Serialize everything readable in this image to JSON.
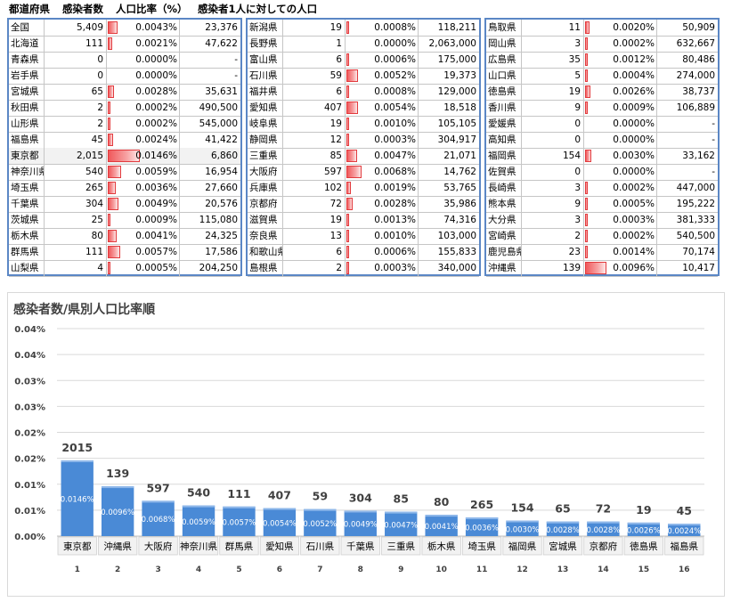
{
  "header": {
    "col1": "都道府県",
    "col2": "感染者数",
    "col3": "人口比率（%）",
    "col4": "感染者1人に対しての人口"
  },
  "columns": [
    [
      {
        "name": "全国",
        "cases": "5,409",
        "ratio": "0.0043%",
        "pct": 0.0043,
        "per": "23,376"
      },
      {
        "name": "北海道",
        "cases": "111",
        "ratio": "0.0021%",
        "pct": 0.0021,
        "per": "47,622"
      },
      {
        "name": "青森県",
        "cases": "0",
        "ratio": "0.0000%",
        "pct": 0,
        "per": "-"
      },
      {
        "name": "岩手県",
        "cases": "0",
        "ratio": "0.0000%",
        "pct": 0,
        "per": "-"
      },
      {
        "name": "宮城県",
        "cases": "65",
        "ratio": "0.0028%",
        "pct": 0.0028,
        "per": "35,631"
      },
      {
        "name": "秋田県",
        "cases": "2",
        "ratio": "0.0002%",
        "pct": 0.0002,
        "per": "490,500"
      },
      {
        "name": "山形県",
        "cases": "2",
        "ratio": "0.0002%",
        "pct": 0.0002,
        "per": "545,000"
      },
      {
        "name": "福島県",
        "cases": "45",
        "ratio": "0.0024%",
        "pct": 0.0024,
        "per": "41,422"
      },
      {
        "name": "東京都",
        "cases": "2,015",
        "ratio": "0.0146%",
        "pct": 0.0146,
        "per": "6,860",
        "hl": true
      },
      {
        "name": "神奈川県",
        "cases": "540",
        "ratio": "0.0059%",
        "pct": 0.0059,
        "per": "16,954"
      },
      {
        "name": "埼玉県",
        "cases": "265",
        "ratio": "0.0036%",
        "pct": 0.0036,
        "per": "27,660"
      },
      {
        "name": "千葉県",
        "cases": "304",
        "ratio": "0.0049%",
        "pct": 0.0049,
        "per": "20,576"
      },
      {
        "name": "茨城県",
        "cases": "25",
        "ratio": "0.0009%",
        "pct": 0.0009,
        "per": "115,080"
      },
      {
        "name": "栃木県",
        "cases": "80",
        "ratio": "0.0041%",
        "pct": 0.0041,
        "per": "24,325"
      },
      {
        "name": "群馬県",
        "cases": "111",
        "ratio": "0.0057%",
        "pct": 0.0057,
        "per": "17,586"
      },
      {
        "name": "山梨県",
        "cases": "4",
        "ratio": "0.0005%",
        "pct": 0.0005,
        "per": "204,250"
      }
    ],
    [
      {
        "name": "新潟県",
        "cases": "19",
        "ratio": "0.0008%",
        "pct": 0.0008,
        "per": "118,211"
      },
      {
        "name": "長野県",
        "cases": "1",
        "ratio": "0.0000%",
        "pct": 0,
        "per": "2,063,000"
      },
      {
        "name": "富山県",
        "cases": "6",
        "ratio": "0.0006%",
        "pct": 0.0006,
        "per": "175,000"
      },
      {
        "name": "石川県",
        "cases": "59",
        "ratio": "0.0052%",
        "pct": 0.0052,
        "per": "19,373"
      },
      {
        "name": "福井県",
        "cases": "6",
        "ratio": "0.0008%",
        "pct": 0.0008,
        "per": "129,000"
      },
      {
        "name": "愛知県",
        "cases": "407",
        "ratio": "0.0054%",
        "pct": 0.0054,
        "per": "18,518"
      },
      {
        "name": "岐阜県",
        "cases": "19",
        "ratio": "0.0010%",
        "pct": 0.001,
        "per": "105,105"
      },
      {
        "name": "静岡県",
        "cases": "12",
        "ratio": "0.0003%",
        "pct": 0.0003,
        "per": "304,917"
      },
      {
        "name": "三重県",
        "cases": "85",
        "ratio": "0.0047%",
        "pct": 0.0047,
        "per": "21,071"
      },
      {
        "name": "大阪府",
        "cases": "597",
        "ratio": "0.0068%",
        "pct": 0.0068,
        "per": "14,762"
      },
      {
        "name": "兵庫県",
        "cases": "102",
        "ratio": "0.0019%",
        "pct": 0.0019,
        "per": "53,765"
      },
      {
        "name": "京都府",
        "cases": "72",
        "ratio": "0.0028%",
        "pct": 0.0028,
        "per": "35,986"
      },
      {
        "name": "滋賀県",
        "cases": "19",
        "ratio": "0.0013%",
        "pct": 0.0013,
        "per": "74,316"
      },
      {
        "name": "奈良県",
        "cases": "13",
        "ratio": "0.0010%",
        "pct": 0.001,
        "per": "103,000"
      },
      {
        "name": "和歌山県",
        "cases": "6",
        "ratio": "0.0006%",
        "pct": 0.0006,
        "per": "155,833"
      },
      {
        "name": "島根県",
        "cases": "2",
        "ratio": "0.0003%",
        "pct": 0.0003,
        "per": "340,000"
      }
    ],
    [
      {
        "name": "鳥取県",
        "cases": "11",
        "ratio": "0.0020%",
        "pct": 0.002,
        "per": "50,909"
      },
      {
        "name": "岡山県",
        "cases": "3",
        "ratio": "0.0002%",
        "pct": 0.0002,
        "per": "632,667"
      },
      {
        "name": "広島県",
        "cases": "35",
        "ratio": "0.0012%",
        "pct": 0.0012,
        "per": "80,486"
      },
      {
        "name": "山口県",
        "cases": "5",
        "ratio": "0.0004%",
        "pct": 0.0004,
        "per": "274,000"
      },
      {
        "name": "徳島県",
        "cases": "19",
        "ratio": "0.0026%",
        "pct": 0.0026,
        "per": "38,737"
      },
      {
        "name": "香川県",
        "cases": "9",
        "ratio": "0.0009%",
        "pct": 0.0009,
        "per": "106,889"
      },
      {
        "name": "愛媛県",
        "cases": "0",
        "ratio": "0.0000%",
        "pct": 0,
        "per": "-"
      },
      {
        "name": "高知県",
        "cases": "0",
        "ratio": "0.0000%",
        "pct": 0,
        "per": "-"
      },
      {
        "name": "福岡県",
        "cases": "154",
        "ratio": "0.0030%",
        "pct": 0.003,
        "per": "33,162"
      },
      {
        "name": "佐賀県",
        "cases": "0",
        "ratio": "0.0000%",
        "pct": 0,
        "per": "-"
      },
      {
        "name": "長崎県",
        "cases": "3",
        "ratio": "0.0002%",
        "pct": 0.0002,
        "per": "447,000"
      },
      {
        "name": "熊本県",
        "cases": "9",
        "ratio": "0.0005%",
        "pct": 0.0005,
        "per": "195,222"
      },
      {
        "name": "大分県",
        "cases": "3",
        "ratio": "0.0003%",
        "pct": 0.0003,
        "per": "381,333"
      },
      {
        "name": "宮崎県",
        "cases": "2",
        "ratio": "0.0002%",
        "pct": 0.0002,
        "per": "540,500"
      },
      {
        "name": "鹿児島県",
        "cases": "23",
        "ratio": "0.0014%",
        "pct": 0.0014,
        "per": "70,174"
      },
      {
        "name": "沖縄県",
        "cases": "139",
        "ratio": "0.0096%",
        "pct": 0.0096,
        "per": "10,417"
      }
    ]
  ],
  "chart_data": {
    "type": "bar",
    "title": "感染者数/県別人口比率順",
    "ylim": [
      0,
      0.04
    ],
    "yticks": [
      "0.00%",
      "0.01%",
      "0.01%",
      "0.02%",
      "0.02%",
      "0.03%",
      "0.03%",
      "0.04%",
      "0.04%"
    ],
    "ytick_values": [
      0,
      0.005,
      0.01,
      0.015,
      0.02,
      0.025,
      0.03,
      0.035,
      0.04
    ],
    "grid": true,
    "categories": [
      "東京都",
      "沖縄県",
      "大阪府",
      "神奈川県",
      "群馬県",
      "愛知県",
      "石川県",
      "千葉県",
      "三重県",
      "栃木県",
      "埼玉県",
      "福岡県",
      "宮城県",
      "京都府",
      "徳島県",
      "福島県"
    ],
    "ranks": [
      "1",
      "2",
      "3",
      "4",
      "5",
      "6",
      "7",
      "8",
      "9",
      "10",
      "11",
      "12",
      "13",
      "14",
      "15",
      "16"
    ],
    "values": [
      0.0146,
      0.0096,
      0.0068,
      0.0059,
      0.0057,
      0.0054,
      0.0052,
      0.0049,
      0.0047,
      0.0041,
      0.0036,
      0.003,
      0.0028,
      0.0028,
      0.0026,
      0.0024
    ],
    "value_labels": [
      "0.0146%",
      "0.0096%",
      "0.0068%",
      "0.0059%",
      "0.0057%",
      "0.0054%",
      "0.0052%",
      "0.0049%",
      "0.0047%",
      "0.0041%",
      "0.0036%",
      "0.0030%",
      "0.0028%",
      "0.0028%",
      "0.0026%",
      "0.0024%"
    ],
    "top_labels": [
      "2015",
      "139",
      "597",
      "540",
      "111",
      "407",
      "59",
      "304",
      "85",
      "80",
      "265",
      "154",
      "65",
      "72",
      "19",
      "45"
    ],
    "bar_color": "#4a8ad6"
  },
  "colors": {
    "table_border": "#5b87c5",
    "databar": "#f0595b"
  }
}
